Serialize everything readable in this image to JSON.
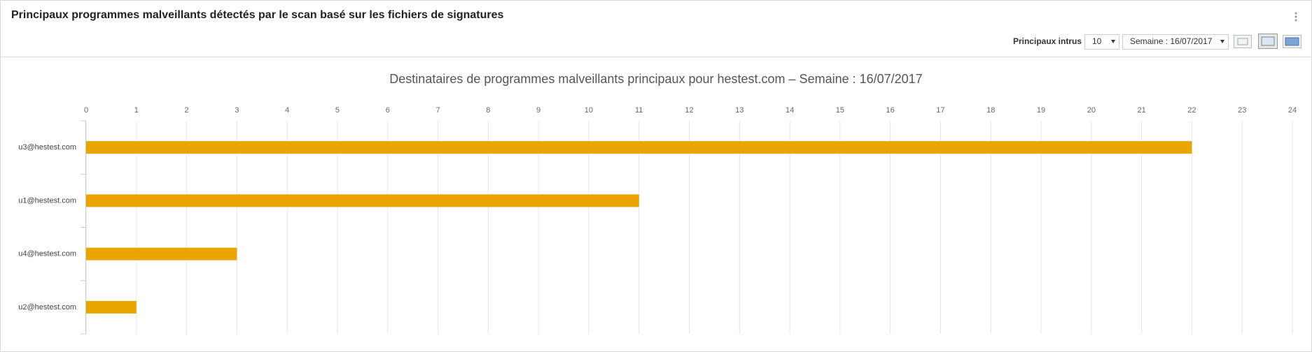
{
  "header": {
    "title": "Principaux programmes malveillants détectés par le scan basé sur les fichiers de signatures",
    "top_label": "Principaux intrus",
    "top_value": "10",
    "period": "Semaine : 16/07/2017"
  },
  "chart_data": {
    "type": "bar",
    "orientation": "horizontal",
    "title": "Destinataires de programmes malveillants principaux pour hestest.com – Semaine : 16/07/2017",
    "categories": [
      "u3@hestest.com",
      "u1@hestest.com",
      "u4@hestest.com",
      "u2@hestest.com"
    ],
    "values": [
      22,
      11,
      3,
      1
    ],
    "color": "#eaa500",
    "xlim": [
      0,
      24
    ],
    "xticks": [
      0,
      1,
      2,
      3,
      4,
      5,
      6,
      7,
      8,
      9,
      10,
      11,
      12,
      13,
      14,
      15,
      16,
      17,
      18,
      19,
      20,
      21,
      22,
      23,
      24
    ],
    "grid": true
  }
}
